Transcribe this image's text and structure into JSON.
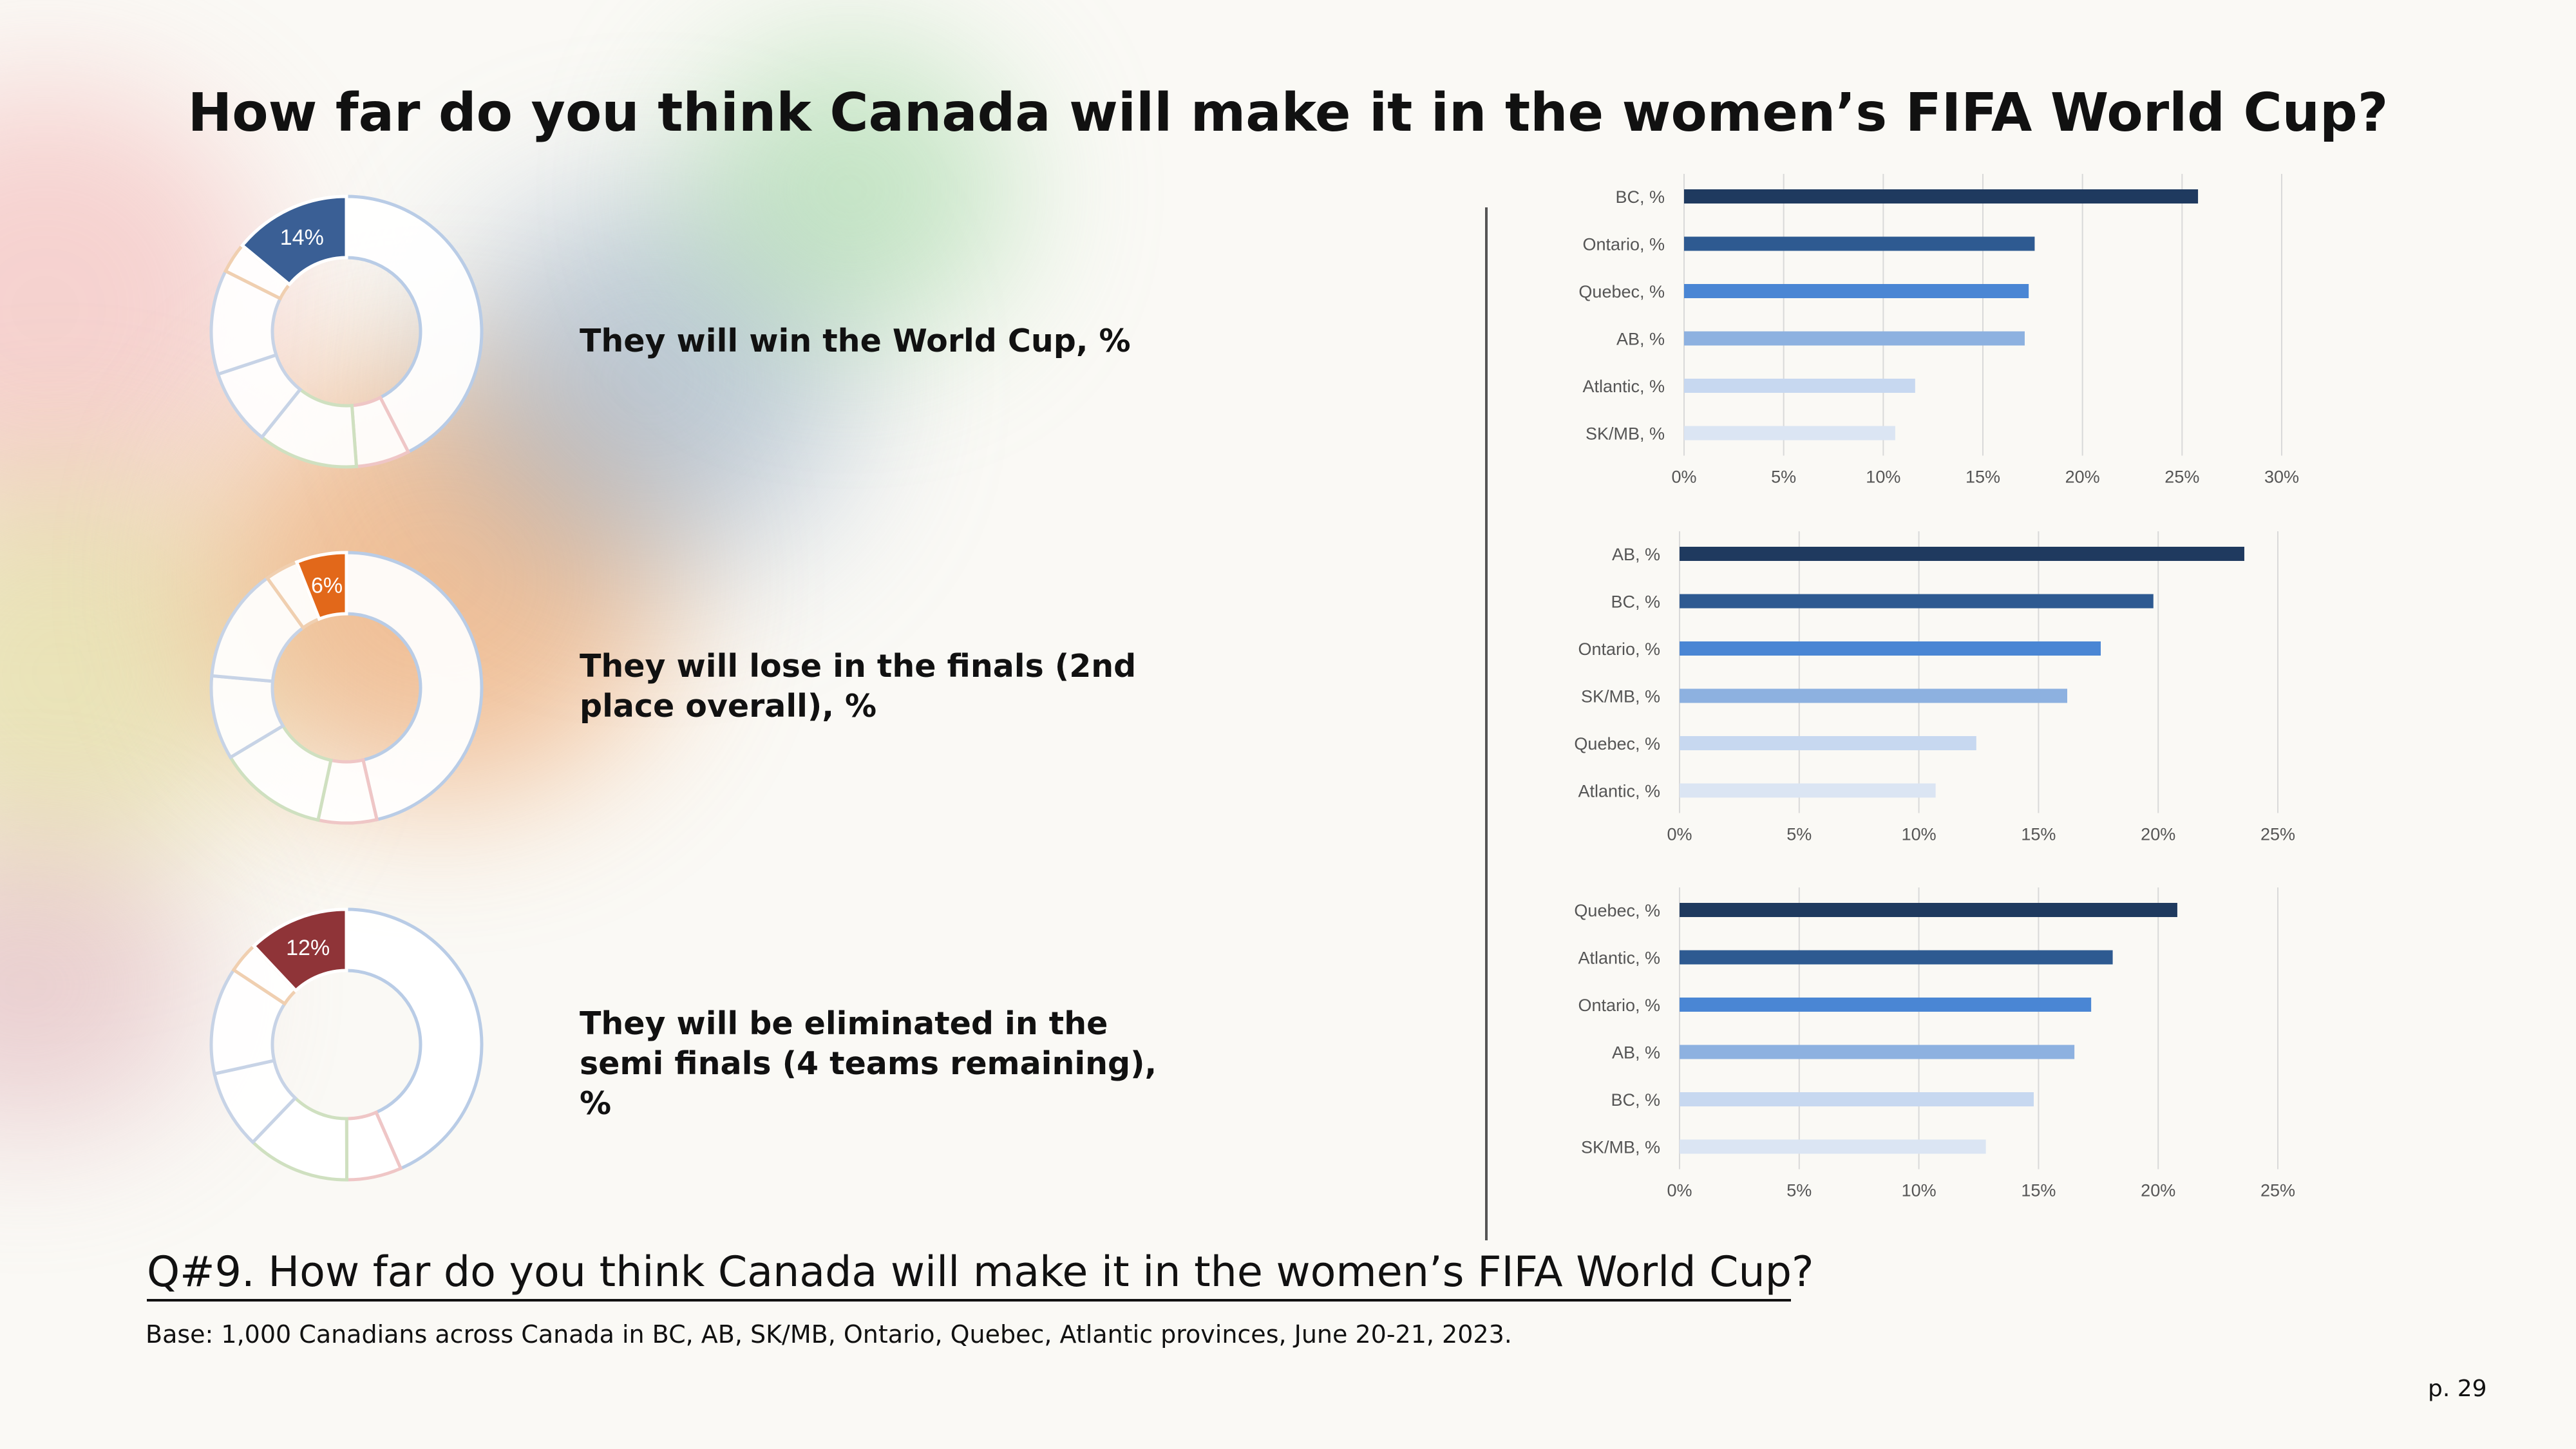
{
  "title": "How far do you think Canada will make it in the women’s FIFA World Cup?",
  "question": "Q#9. How far do you think Canada will make it in the women’s FIFA World Cup?",
  "base": "Base: 1,000 Canadians across Canada in BC, AB, SK/MB, Ontario, Quebec, Atlantic provinces, June 20-21, 2023.",
  "page_number": "p. 29",
  "colors": {
    "navy": "#1f3a5f",
    "blue_dark": "#2e5a91",
    "blue_mid": "#4a86d4",
    "blue_light": "#8db1e0",
    "blue_pale": "#c7d8f0",
    "blue_faint": "#dbe5f3",
    "donut_win": "#3a5f95",
    "donut_final": "#e2681a",
    "donut_semi": "#8f3438"
  },
  "donut_labels": [
    "They will win the World Cup, %",
    "They will lose in the finals (2nd place overall), %",
    "They will be eliminated in the semi finals (4 teams remaining), %"
  ],
  "chart_data": [
    {
      "type": "pie",
      "label": "They will win the World Cup, %",
      "highlight_value": 14,
      "highlight_label": "14%"
    },
    {
      "type": "pie",
      "label": "They will lose in the finals (2nd place overall), %",
      "highlight_value": 6,
      "highlight_label": "6%"
    },
    {
      "type": "pie",
      "label": "They will be eliminated in the semi finals (4 teams remaining), %",
      "highlight_value": 12,
      "highlight_label": "12%"
    },
    {
      "type": "bar",
      "orientation": "horizontal",
      "categories": [
        "BC, %",
        "Ontario, %",
        "Quebec, %",
        "AB, %",
        "Atlantic, %",
        "SK/MB, %"
      ],
      "values": [
        25.8,
        17.6,
        17.3,
        17.1,
        11.6,
        10.6
      ],
      "xlim": [
        0,
        30
      ],
      "xticks": [
        "0%",
        "5%",
        "10%",
        "15%",
        "20%",
        "25%",
        "30%"
      ],
      "grid": true
    },
    {
      "type": "bar",
      "orientation": "horizontal",
      "categories": [
        "AB, %",
        "BC, %",
        "Ontario, %",
        "SK/MB, %",
        "Quebec, %",
        "Atlantic, %"
      ],
      "values": [
        23.6,
        19.8,
        17.6,
        16.2,
        12.4,
        10.7
      ],
      "xlim": [
        0,
        25
      ],
      "xticks": [
        "0%",
        "5%",
        "10%",
        "15%",
        "20%",
        "25%"
      ],
      "grid": true
    },
    {
      "type": "bar",
      "orientation": "horizontal",
      "categories": [
        "Quebec, %",
        "Atlantic, %",
        "Ontario, %",
        "AB, %",
        "BC, %",
        "SK/MB, %"
      ],
      "values": [
        20.8,
        18.1,
        17.2,
        16.5,
        14.8,
        12.8
      ],
      "xlim": [
        0,
        25
      ],
      "xticks": [
        "0%",
        "5%",
        "10%",
        "15%",
        "20%",
        "25%"
      ],
      "grid": true
    }
  ]
}
